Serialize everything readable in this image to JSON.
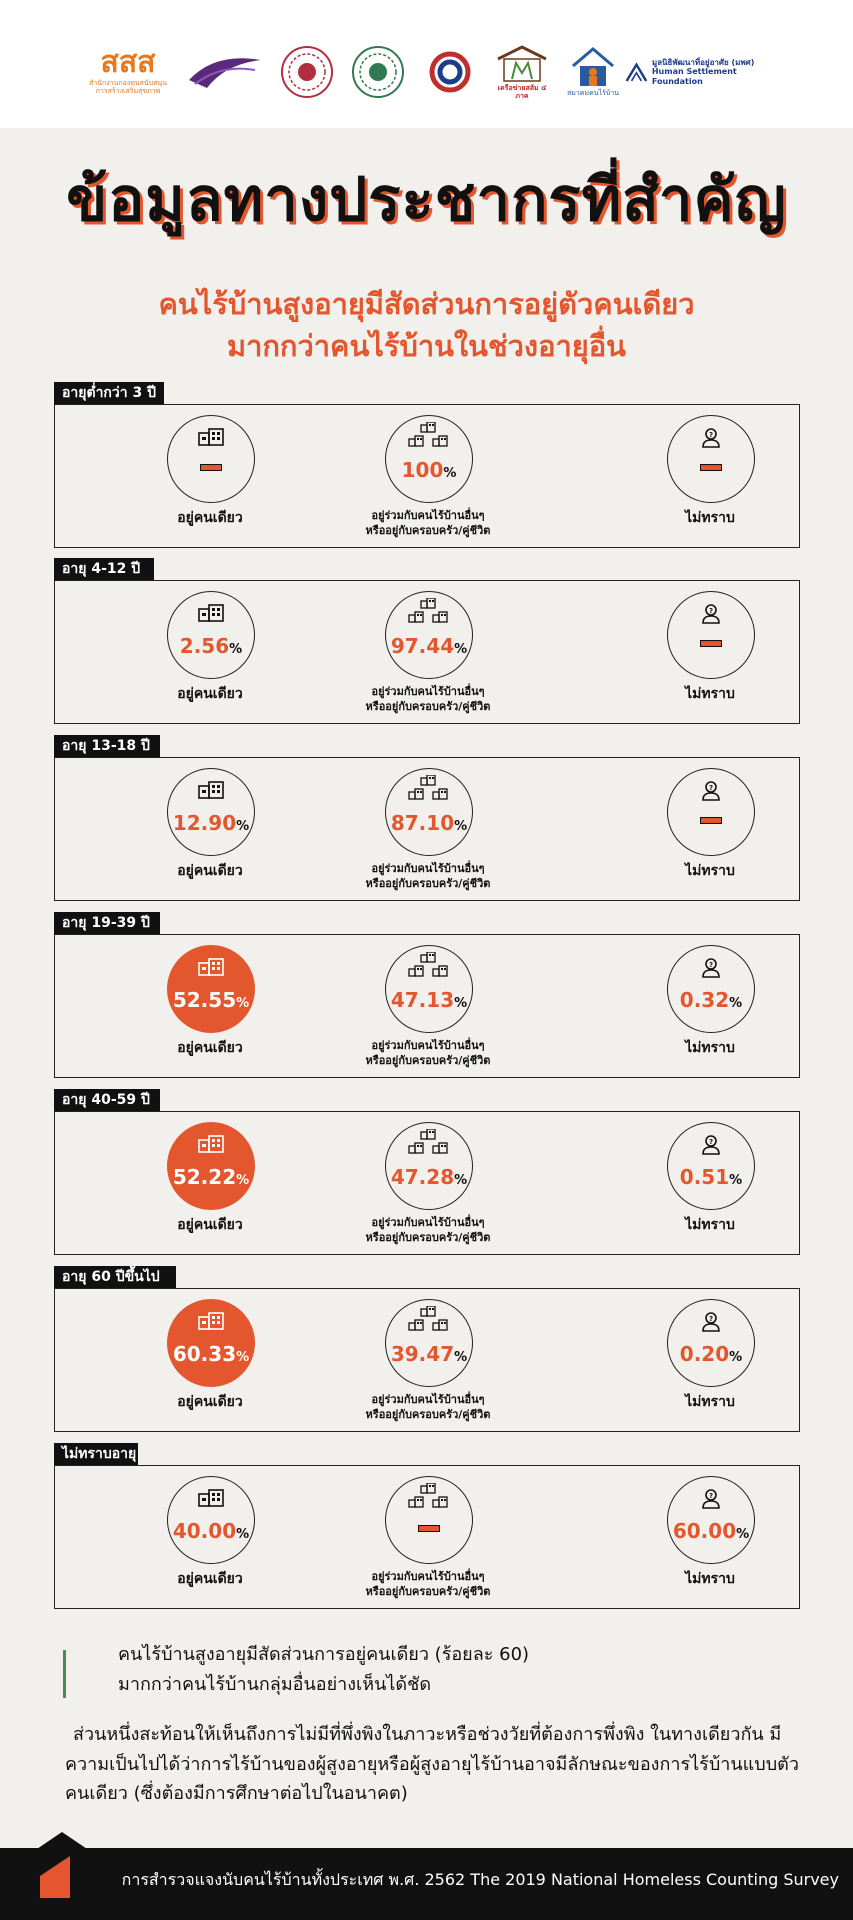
{
  "logos": [
    {
      "name": "thaihealth-logo",
      "text": "สสส",
      "sub": "สำนักงานกองทุนสนับสนุนการสร้างเสริมสุขภาพ",
      "color": "#e8781e"
    },
    {
      "name": "university-research-logo",
      "text": "",
      "sub": "",
      "color": "#5a2a7a"
    },
    {
      "name": "seal-logo-1",
      "text": "",
      "sub": "",
      "color": "#b03040"
    },
    {
      "name": "seal-logo-2",
      "text": "",
      "sub": "",
      "color": "#2f7a50"
    },
    {
      "name": "development-logo",
      "text": "",
      "sub": "",
      "color": "#c0302a"
    },
    {
      "name": "network-4-regions-logo",
      "text": "เครือข่ายสลัม ๔ ภาค",
      "sub": "",
      "color": "#c02a2a"
    },
    {
      "name": "homeless-association-logo",
      "text": "",
      "sub": "สมาคมคนไร้บ้าน",
      "color": "#2a5aa0"
    },
    {
      "name": "human-settlement-logo",
      "text": "มูลนิธิพัฒนาที่อยู่อาศัย (มพศ)",
      "sub": "Human Settlement Foundation",
      "color": "#1d3d8a"
    }
  ],
  "title": "ข้อมูลทางประชากรที่สำคัญ",
  "subtitle_line1": "คนไร้บ้านสูงอายุมีสัดส่วนการอยู่ตัวคนเดียว",
  "subtitle_line2": "มากกว่าคนไร้บ้านในช่วงอายุอื่น",
  "captions": {
    "alone": "อยู่คนเดียว",
    "with_others_1": "อยู่ร่วมกับคนไร้บ้านอื่นๆ",
    "with_others_2": "หรืออยู่กับครอบครัว/คู่ชีวิต",
    "unknown": "ไม่ทราบ"
  },
  "percent_sign": "%",
  "groups": [
    {
      "label": "อายุต่ำกว่า 3 ปี",
      "alone": null,
      "with_others": "100",
      "unknown": null,
      "alone_highlight": false
    },
    {
      "label": "อายุ 4-12 ปี",
      "alone": "2.56",
      "with_others": "97.44",
      "unknown": null,
      "alone_highlight": false
    },
    {
      "label": "อายุ 13-18 ปี",
      "alone": "12.90",
      "with_others": "87.10",
      "unknown": null,
      "alone_highlight": false
    },
    {
      "label": "อายุ 19-39 ปี",
      "alone": "52.55",
      "with_others": "47.13",
      "unknown": "0.32",
      "alone_highlight": true
    },
    {
      "label": "อายุ 40-59 ปี",
      "alone": "52.22",
      "with_others": "47.28",
      "unknown": "0.51",
      "alone_highlight": true
    },
    {
      "label": "อายุ 60 ปีขึ้นไป",
      "alone": "60.33",
      "with_others": "39.47",
      "unknown": "0.20",
      "alone_highlight": true
    },
    {
      "label": "ไม่ทราบอายุ",
      "alone": "40.00",
      "with_others": null,
      "unknown": "60.00",
      "alone_highlight": false
    }
  ],
  "note_line1": "คนไร้บ้านสูงอายุมีสัดส่วนการอยู่คนเดียว (ร้อยละ 60)",
  "note_line2": "มากกว่าคนไร้บ้านกลุ่มอื่นอย่างเห็นได้ชัด",
  "paragraph": "ส่วนหนึ่งสะท้อนให้เห็นถึงการไม่มีที่พึ่งพิงในภาวะหรือช่วงวัยที่ต้องการพึ่งพิง ในทางเดียวกัน มีความเป็นไปได้ว่าการไร้บ้านของผู้สูงอายุหรือผู้สูงอายุไร้บ้านอาจมีลักษณะของการไร้บ้านแบบตัวคนเดียว (ซึ่งต้องมีการศึกษาต่อไปในอนาคต)",
  "footer": "การสำรวจแจงนับคนไร้บ้านทั้งประเทศ พ.ศ. 2562   The 2019 National Homeless Counting Survey",
  "colors": {
    "accent": "#e4572e",
    "dark": "#111111",
    "background": "#f1f0ec",
    "note_bar": "#4a8b5c"
  },
  "icons": {
    "alone": "building-icon",
    "with_others": "group-buildings-icon",
    "unknown": "person-question-icon"
  }
}
